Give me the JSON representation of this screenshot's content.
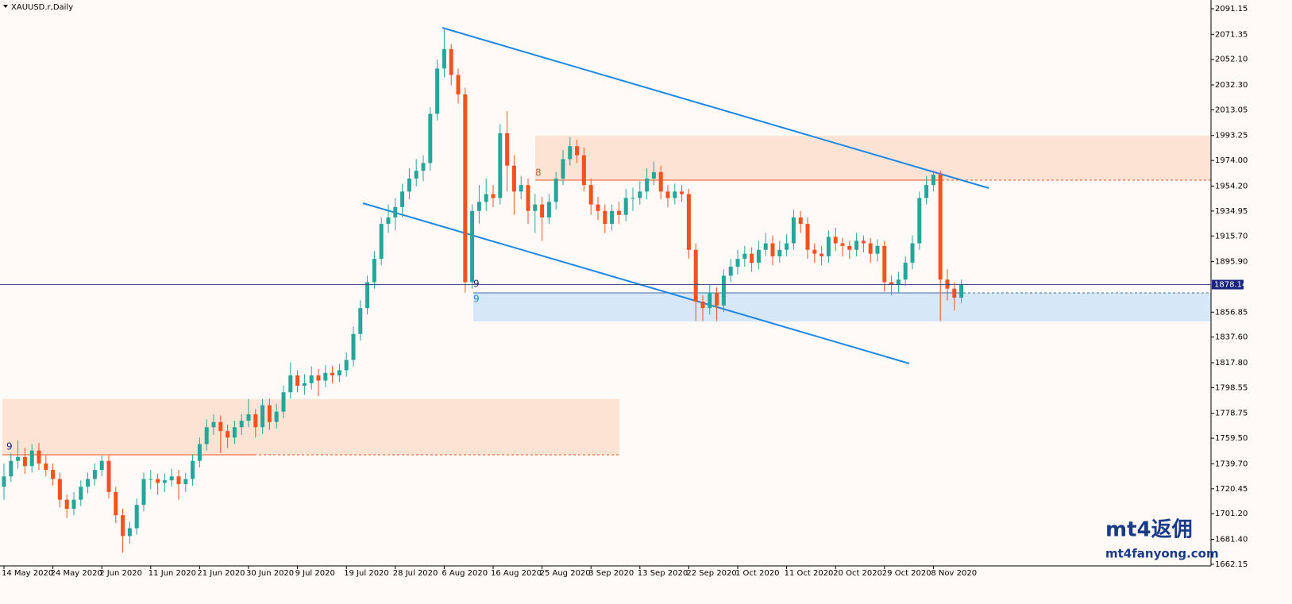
{
  "chart_data": {
    "type": "candlestick",
    "title": "XAUUSD.r,Daily",
    "ylim": [
      1660.9,
      2097.9
    ],
    "yticks": [
      2091.15,
      2071.35,
      {
        "value": 2052.1,
        "label": "2052.10"
      },
      {
        "value": 2032.3,
        "label": "2032.30"
      },
      2013.05,
      1993.25,
      {
        "value": 1974,
        "label": "1974.00"
      },
      {
        "value": 1954.2,
        "label": "1954.20"
      },
      1934.95,
      {
        "value": 1915.7,
        "label": "1915.70"
      },
      {
        "value": 1895.9,
        "label": "1895.90"
      },
      1856.85,
      {
        "value": 1837.6,
        "label": "1837.60"
      },
      {
        "value": 1817.8,
        "label": "1817.80"
      },
      1798.55,
      1778.75,
      {
        "value": 1759.5,
        "label": "1759.50"
      },
      {
        "value": 1739.7,
        "label": "1739.70"
      },
      1720.45,
      {
        "value": 1701.2,
        "label": "1701.20"
      },
      {
        "value": 1681.4,
        "label": "1681.40"
      },
      1662.15
    ],
    "current_price": 1878.14,
    "up_color": "#26a69a",
    "down_color": "#f4511e",
    "annotations": [
      "9",
      "9",
      "9",
      "8"
    ],
    "watermark": [
      "mt4返佣",
      "mt4fanyong.com"
    ],
    "categories": [
      "14 May 2020",
      null,
      null,
      null,
      null,
      null,
      null,
      "24 May 2020",
      null,
      null,
      null,
      null,
      null,
      null,
      "2 Jun 2020",
      null,
      null,
      null,
      null,
      null,
      null,
      "11 Jun 2020",
      null,
      null,
      null,
      null,
      null,
      null,
      "21 Jun 2020",
      null,
      null,
      null,
      null,
      null,
      null,
      "30 Jun 2020",
      null,
      null,
      null,
      null,
      null,
      null,
      "9 Jul 2020",
      null,
      null,
      null,
      null,
      null,
      null,
      "19 Jul 2020",
      null,
      null,
      null,
      null,
      null,
      null,
      "28 Jul 2020",
      null,
      null,
      null,
      null,
      null,
      null,
      "6 Aug 2020",
      null,
      null,
      null,
      null,
      null,
      null,
      "16 Aug 2020",
      null,
      null,
      null,
      null,
      null,
      null,
      "25 Aug 2020",
      null,
      null,
      null,
      null,
      null,
      null,
      "3 Sep 2020",
      null,
      null,
      null,
      null,
      null,
      null,
      "13 Sep 2020",
      null,
      null,
      null,
      null,
      null,
      null,
      "22 Sep 2020",
      null,
      null,
      null,
      null,
      null,
      null,
      "1 Oct 2020",
      null,
      null,
      null,
      null,
      null,
      null,
      "11 Oct 2020",
      null,
      null,
      null,
      null,
      null,
      null,
      "20 Oct 2020",
      null,
      null,
      null,
      null,
      null,
      null,
      "29 Oct 2020",
      null,
      null,
      null,
      null,
      null,
      null,
      "8 Nov 2020",
      null,
      null,
      null,
      null
    ],
    "candles": [
      [
        1722,
        1740,
        1712,
        1730
      ],
      [
        1730,
        1748,
        1726,
        1742
      ],
      [
        1742,
        1758,
        1736,
        1745
      ],
      [
        1745,
        1752,
        1732,
        1738
      ],
      [
        1738,
        1755,
        1733,
        1750
      ],
      [
        1750,
        1756,
        1735,
        1740
      ],
      [
        1740,
        1746,
        1730,
        1735
      ],
      [
        1735,
        1740,
        1723,
        1728
      ],
      [
        1728,
        1733,
        1706,
        1712
      ],
      [
        1712,
        1716,
        1698,
        1705
      ],
      [
        1705,
        1718,
        1700,
        1712
      ],
      [
        1712,
        1727,
        1707,
        1722
      ],
      [
        1722,
        1733,
        1717,
        1728
      ],
      [
        1728,
        1740,
        1723,
        1735
      ],
      [
        1735,
        1746,
        1730,
        1742
      ],
      [
        1742,
        1746,
        1713,
        1718
      ],
      [
        1718,
        1722,
        1694,
        1700
      ],
      [
        1700,
        1705,
        1671,
        1684
      ],
      [
        1684,
        1695,
        1678,
        1690
      ],
      [
        1690,
        1713,
        1685,
        1708
      ],
      [
        1708,
        1733,
        1703,
        1728
      ],
      [
        1728,
        1735,
        1720,
        1728
      ],
      [
        1728,
        1732,
        1716,
        1725
      ],
      [
        1725,
        1732,
        1718,
        1727
      ],
      [
        1727,
        1736,
        1722,
        1730
      ],
      [
        1730,
        1735,
        1712,
        1724
      ],
      [
        1724,
        1733,
        1718,
        1728
      ],
      [
        1728,
        1747,
        1723,
        1742
      ],
      [
        1742,
        1760,
        1737,
        1755
      ],
      [
        1755,
        1774,
        1750,
        1768
      ],
      [
        1768,
        1778,
        1762,
        1772
      ],
      [
        1772,
        1777,
        1748,
        1765
      ],
      [
        1765,
        1770,
        1752,
        1760
      ],
      [
        1760,
        1773,
        1755,
        1768
      ],
      [
        1768,
        1778,
        1762,
        1773
      ],
      [
        1773,
        1790,
        1768,
        1778
      ],
      [
        1778,
        1782,
        1760,
        1768
      ],
      [
        1768,
        1790,
        1763,
        1785
      ],
      [
        1785,
        1790,
        1766,
        1772
      ],
      [
        1772,
        1786,
        1767,
        1780
      ],
      [
        1780,
        1800,
        1775,
        1795
      ],
      [
        1795,
        1818,
        1790,
        1808
      ],
      [
        1808,
        1812,
        1795,
        1800
      ],
      [
        1800,
        1809,
        1793,
        1802
      ],
      [
        1802,
        1815,
        1797,
        1808
      ],
      [
        1808,
        1813,
        1792,
        1804
      ],
      [
        1804,
        1816,
        1799,
        1810
      ],
      [
        1810,
        1815,
        1802,
        1808
      ],
      [
        1808,
        1817,
        1803,
        1812
      ],
      [
        1812,
        1826,
        1807,
        1820
      ],
      [
        1820,
        1846,
        1815,
        1840
      ],
      [
        1840,
        1866,
        1835,
        1860
      ],
      [
        1860,
        1885,
        1855,
        1880
      ],
      [
        1880,
        1904,
        1875,
        1898
      ],
      [
        1898,
        1930,
        1893,
        1925
      ],
      [
        1925,
        1940,
        1918,
        1930
      ],
      [
        1930,
        1945,
        1920,
        1938
      ],
      [
        1938,
        1956,
        1930,
        1950
      ],
      [
        1950,
        1968,
        1944,
        1960
      ],
      [
        1960,
        1975,
        1954,
        1966
      ],
      [
        1966,
        1978,
        1958,
        1972
      ],
      [
        1972,
        2015,
        1966,
        2010
      ],
      [
        2010,
        2052,
        2005,
        2045
      ],
      [
        2045,
        2075,
        2038,
        2060
      ],
      [
        2060,
        2064,
        2032,
        2040
      ],
      [
        2040,
        2045,
        2018,
        2025
      ],
      [
        2025,
        2030,
        1872,
        1880
      ],
      [
        1880,
        1940,
        1875,
        1935
      ],
      [
        1935,
        1955,
        1925,
        1942
      ],
      [
        1942,
        1960,
        1935,
        1948
      ],
      [
        1948,
        1955,
        1938,
        1945
      ],
      [
        1945,
        2002,
        1940,
        1995
      ],
      [
        1995,
        2012,
        1950,
        1970
      ],
      [
        1970,
        1978,
        1932,
        1950
      ],
      [
        1950,
        1962,
        1944,
        1955
      ],
      [
        1955,
        1960,
        1925,
        1935
      ],
      [
        1935,
        1948,
        1918,
        1940
      ],
      [
        1940,
        1946,
        1912,
        1930
      ],
      [
        1930,
        1948,
        1925,
        1942
      ],
      [
        1942,
        1965,
        1936,
        1960
      ],
      [
        1960,
        1982,
        1955,
        1975
      ],
      [
        1975,
        1992,
        1970,
        1985
      ],
      [
        1985,
        1990,
        1972,
        1978
      ],
      [
        1978,
        1984,
        1950,
        1955
      ],
      [
        1955,
        1960,
        1932,
        1940
      ],
      [
        1940,
        1946,
        1928,
        1935
      ],
      [
        1935,
        1940,
        1918,
        1925
      ],
      [
        1925,
        1940,
        1920,
        1935
      ],
      [
        1935,
        1942,
        1925,
        1932
      ],
      [
        1932,
        1952,
        1927,
        1945
      ],
      [
        1945,
        1953,
        1935,
        1945
      ],
      [
        1945,
        1958,
        1940,
        1950
      ],
      [
        1950,
        1968,
        1944,
        1960
      ],
      [
        1960,
        1973,
        1955,
        1965
      ],
      [
        1965,
        1970,
        1944,
        1950
      ],
      [
        1950,
        1955,
        1938,
        1945
      ],
      [
        1945,
        1956,
        1940,
        1950
      ],
      [
        1950,
        1955,
        1942,
        1948
      ],
      [
        1948,
        1952,
        1898,
        1905
      ],
      [
        1905,
        1910,
        1850,
        1865
      ],
      [
        1865,
        1870,
        1850,
        1860
      ],
      [
        1860,
        1878,
        1855,
        1872
      ],
      [
        1872,
        1876,
        1850,
        1862
      ],
      [
        1862,
        1890,
        1857,
        1885
      ],
      [
        1885,
        1898,
        1880,
        1892
      ],
      [
        1892,
        1905,
        1886,
        1898
      ],
      [
        1898,
        1908,
        1892,
        1902
      ],
      [
        1902,
        1907,
        1888,
        1895
      ],
      [
        1895,
        1912,
        1890,
        1905
      ],
      [
        1905,
        1918,
        1900,
        1910
      ],
      [
        1910,
        1916,
        1893,
        1900
      ],
      [
        1900,
        1912,
        1895,
        1905
      ],
      [
        1905,
        1917,
        1900,
        1910
      ],
      [
        1910,
        1936,
        1905,
        1930
      ],
      [
        1930,
        1935,
        1918,
        1925
      ],
      [
        1925,
        1930,
        1898,
        1905
      ],
      [
        1905,
        1910,
        1895,
        1902
      ],
      [
        1902,
        1908,
        1893,
        1900
      ],
      [
        1900,
        1920,
        1895,
        1915
      ],
      [
        1915,
        1922,
        1904,
        1910
      ],
      [
        1910,
        1914,
        1900,
        1908
      ],
      [
        1908,
        1912,
        1898,
        1905
      ],
      [
        1905,
        1918,
        1900,
        1912
      ],
      [
        1912,
        1916,
        1903,
        1910
      ],
      [
        1910,
        1914,
        1895,
        1902
      ],
      [
        1902,
        1913,
        1896,
        1908
      ],
      [
        1908,
        1912,
        1873,
        1880
      ],
      [
        1880,
        1885,
        1870,
        1878
      ],
      [
        1878,
        1888,
        1872,
        1882
      ],
      [
        1882,
        1900,
        1877,
        1895
      ],
      [
        1895,
        1916,
        1890,
        1910
      ],
      [
        1910,
        1950,
        1905,
        1945
      ],
      [
        1945,
        1962,
        1940,
        1955
      ],
      [
        1955,
        1966,
        1950,
        1963
      ],
      [
        1963,
        1966,
        1850,
        1882
      ],
      [
        1882,
        1890,
        1866,
        1875
      ],
      [
        1875,
        1880,
        1858,
        1868
      ],
      [
        1868,
        1882,
        1864,
        1878
      ]
    ]
  }
}
